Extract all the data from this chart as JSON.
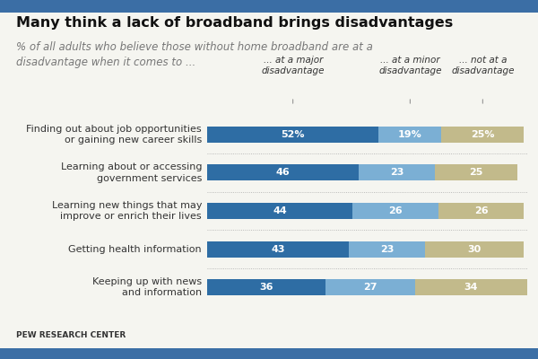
{
  "title": "Many think a lack of broadband brings disadvantages",
  "subtitle": "% of all adults who believe those without home broadband are at a\ndisadvantage when it comes to ...",
  "footer": "PEW RESEARCH CENTER",
  "categories": [
    "Finding out about job opportunities\nor gaining new career skills",
    "Learning about or accessing\ngovernment services",
    "Learning new things that may\nimprove or enrich their lives",
    "Getting health information",
    "Keeping up with news\nand information"
  ],
  "major": [
    52,
    46,
    44,
    43,
    36
  ],
  "minor": [
    19,
    23,
    26,
    23,
    27
  ],
  "not_at": [
    25,
    25,
    26,
    30,
    34
  ],
  "major_label": "... at a major\ndisadvantage",
  "minor_label": "... at a minor\ndisadvantage",
  "not_label": "... not at a\ndisadvantage",
  "color_major": "#2E6DA4",
  "color_minor": "#7BAFD4",
  "color_not": "#C2BA8B",
  "bg_color": "#F5F5F0",
  "accent_bar_color": "#3B6EA5",
  "label_color": "#FFFFFF",
  "title_fontsize": 11.5,
  "subtitle_fontsize": 8.5,
  "cat_fontsize": 8,
  "bar_label_fontsize": 8,
  "header_fontsize": 7.5,
  "footer_fontsize": 6.5
}
